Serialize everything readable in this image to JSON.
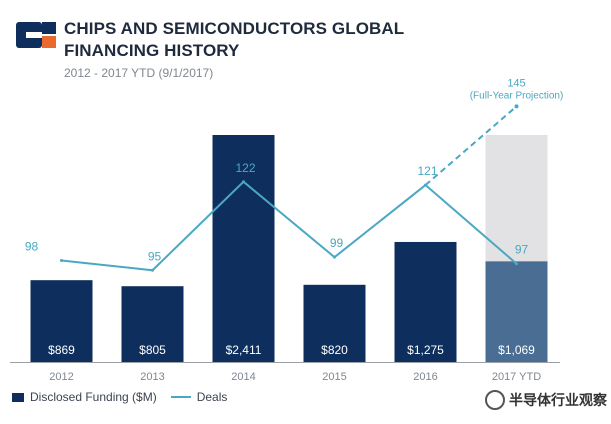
{
  "header": {
    "title": "CHIPS AND SEMICONDUCTORS GLOBAL FINANCING HISTORY",
    "subtitle": "2012 - 2017 YTD (9/1/2017)",
    "logo_colors": {
      "primary": "#0e2f5e",
      "accent": "#e86a2e"
    }
  },
  "legend": {
    "bars_label": "Disclosed Funding ($M)",
    "line_label": "Deals"
  },
  "watermark": {
    "text": "半导体行业观察"
  },
  "chart_data": {
    "type": "bar",
    "title": "CHIPS AND SEMICONDUCTORS GLOBAL FINANCING HISTORY",
    "subtitle": "2012 - 2017 YTD (9/1/2017)",
    "categories": [
      "2012",
      "2013",
      "2014",
      "2015",
      "2016",
      "2017 YTD"
    ],
    "series": [
      {
        "name": "Disclosed Funding ($M)",
        "type": "bar",
        "values": [
          869,
          805,
          2411,
          820,
          1275,
          1069
        ],
        "labels": [
          "$869",
          "$805",
          "$2,411",
          "$820",
          "$1,275",
          "$1,069"
        ],
        "color": "#0e2f5e",
        "last_color": "#4a6d94"
      },
      {
        "name": "Deals",
        "type": "line",
        "values": [
          98,
          95,
          122,
          99,
          121,
          97
        ],
        "labels": [
          "98",
          "95",
          "122",
          "99",
          "121",
          "97"
        ],
        "color": "#4aa8c2"
      }
    ],
    "projection": {
      "bar_value": 2411,
      "deals_value": 145,
      "label_value": "145",
      "label_text": "(Full-Year Projection)",
      "bar_color": "#e2e2e4"
    },
    "bar_ylim": [
      0,
      2411
    ],
    "deals_ylim": [
      60,
      150
    ],
    "grid": false,
    "legend_position": "bottom-left"
  }
}
